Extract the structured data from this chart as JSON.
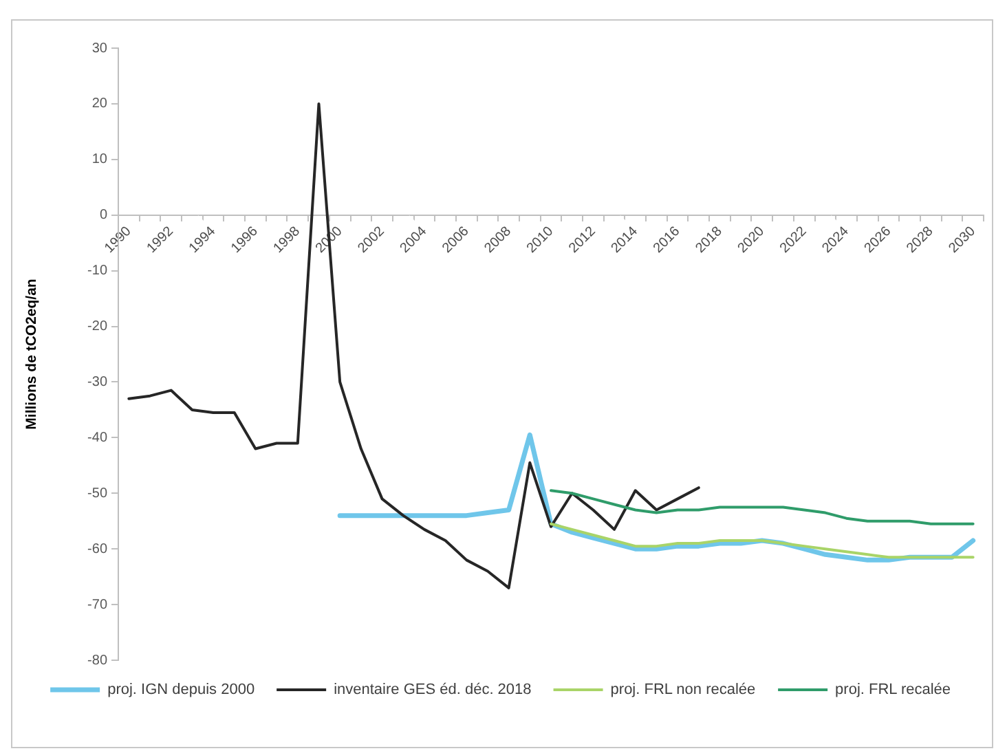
{
  "chart_data": {
    "type": "line",
    "ylabel": "Millions de tCO2eq/an",
    "categories": [
      "1990",
      null,
      "1992",
      null,
      "1994",
      null,
      "1996",
      null,
      "1998",
      null,
      "2000",
      null,
      "2002",
      null,
      "2004",
      null,
      "2006",
      null,
      "2008",
      null,
      "2010",
      null,
      "2012",
      null,
      "2014",
      null,
      "2016",
      null,
      "2018",
      null,
      "2020",
      null,
      "2022",
      null,
      "2024",
      null,
      "2026",
      null,
      "2028",
      null,
      "2030"
    ],
    "series": [
      {
        "name": "proj. IGN depuis 2000",
        "color": "#6fc6ea",
        "values": [
          null,
          null,
          null,
          null,
          null,
          null,
          null,
          null,
          null,
          null,
          -54,
          -54,
          -54,
          -54,
          -54,
          -54,
          -54,
          -53.5,
          -53,
          -39.5,
          -55.5,
          -57,
          -58,
          -59,
          -60,
          -60,
          -59.5,
          -59.5,
          -59,
          -59,
          -58.5,
          -59,
          -60,
          -61,
          -61.5,
          -62,
          -62,
          -61.5,
          -61.5,
          -61.5,
          -58.5
        ]
      },
      {
        "name": "inventaire GES éd. déc. 2018",
        "color": "#262626",
        "values": [
          -33,
          -32.5,
          -31.5,
          -35,
          -35.5,
          -35.5,
          -42,
          -41,
          -41,
          20,
          -30,
          -42,
          -51,
          -54,
          -56.5,
          -58.5,
          -62,
          -64,
          -67,
          -44.5,
          -56,
          -50,
          -53,
          -56.5,
          -49.5,
          -53,
          -51,
          -49,
          null,
          null,
          null,
          null,
          null,
          null,
          null,
          null,
          null,
          null,
          null,
          null,
          null
        ]
      },
      {
        "name": "proj. FRL non recalée",
        "color": "#a9d468",
        "values": [
          null,
          null,
          null,
          null,
          null,
          null,
          null,
          null,
          null,
          null,
          null,
          null,
          null,
          null,
          null,
          null,
          null,
          null,
          null,
          null,
          -55.5,
          -56.5,
          -57.5,
          -58.5,
          -59.5,
          -59.5,
          -59,
          -59,
          -58.5,
          -58.5,
          -58.5,
          -59,
          -59.5,
          -60,
          -60.5,
          -61,
          -61.5,
          -61.5,
          -61.5,
          -61.5,
          -61.5
        ]
      },
      {
        "name": "proj. FRL recalée",
        "color": "#2f9c6a",
        "values": [
          null,
          null,
          null,
          null,
          null,
          null,
          null,
          null,
          null,
          null,
          null,
          null,
          null,
          null,
          null,
          null,
          null,
          null,
          null,
          null,
          -49.5,
          -50,
          -51,
          -52,
          -53,
          -53.5,
          -53,
          -53,
          -52.5,
          -52.5,
          -52.5,
          -52.5,
          -53,
          -53.5,
          -54.5,
          -55,
          -55,
          -55,
          -55.5,
          -55.5,
          -55.5
        ]
      }
    ],
    "ylim": [
      -80,
      30
    ],
    "yticks": [
      -80,
      -70,
      -60,
      -50,
      -40,
      -30,
      -20,
      -10,
      0,
      10,
      20,
      30
    ],
    "grid": false,
    "legend": "bottom",
    "marker": "none",
    "line_style": "solid"
  }
}
